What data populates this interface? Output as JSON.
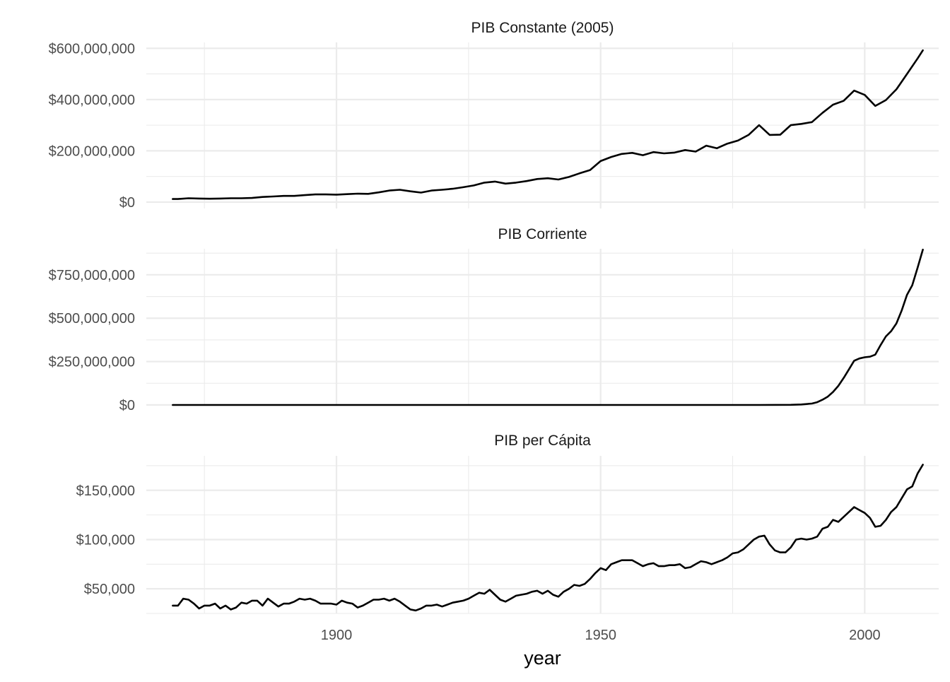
{
  "chart_data": {
    "type": "line",
    "xlabel": "year",
    "xlim": [
      1864,
      2014
    ],
    "x_ticks": [
      1900,
      1950,
      2000
    ],
    "x_tick_labels": [
      "1900",
      "1950",
      "2000"
    ],
    "panels": [
      {
        "title": "PIB Constante (2005)",
        "ylim": [
          -25000000,
          623000000
        ],
        "y_ticks": [
          0,
          200000000,
          400000000,
          600000000
        ],
        "y_tick_labels": [
          "$0",
          "$200,000,000",
          "$400,000,000",
          "$600,000,000"
        ],
        "series": [
          {
            "x": [
              1869,
              1870,
              1872,
              1874,
              1876,
              1878,
              1880,
              1882,
              1884,
              1886,
              1888,
              1890,
              1892,
              1894,
              1896,
              1898,
              1900,
              1902,
              1904,
              1906,
              1908,
              1910,
              1912,
              1914,
              1916,
              1918,
              1920,
              1922,
              1924,
              1926,
              1928,
              1930,
              1932,
              1934,
              1936,
              1938,
              1940,
              1942,
              1944,
              1946,
              1948,
              1950,
              1952,
              1954,
              1956,
              1958,
              1960,
              1962,
              1964,
              1966,
              1968,
              1970,
              1972,
              1974,
              1976,
              1978,
              1980,
              1982,
              1984,
              1986,
              1988,
              1990,
              1992,
              1994,
              1996,
              1998,
              2000,
              2002,
              2004,
              2006,
              2008,
              2010,
              2011
            ],
            "y": [
              12000000,
              12000000,
              15000000,
              14000000,
              13000000,
              14000000,
              15000000,
              15000000,
              16000000,
              20000000,
              22000000,
              24000000,
              24000000,
              27000000,
              30000000,
              30000000,
              29000000,
              31000000,
              33000000,
              32000000,
              38000000,
              45000000,
              48000000,
              42000000,
              37000000,
              45000000,
              48000000,
              52000000,
              58000000,
              65000000,
              76000000,
              80000000,
              72000000,
              76000000,
              82000000,
              90000000,
              93000000,
              88000000,
              98000000,
              112000000,
              125000000,
              160000000,
              176000000,
              188000000,
              192000000,
              183000000,
              195000000,
              190000000,
              193000000,
              203000000,
              197000000,
              220000000,
              210000000,
              228000000,
              240000000,
              262000000,
              300000000,
              262000000,
              263000000,
              300000000,
              305000000,
              312000000,
              348000000,
              380000000,
              395000000,
              435000000,
              418000000,
              375000000,
              398000000,
              440000000,
              500000000,
              560000000,
              592000000
            ]
          }
        ]
      },
      {
        "title": "PIB Corriente",
        "ylim": [
          0,
          900000000
        ],
        "y_ticks": [
          0,
          250000000,
          500000000,
          750000000
        ],
        "y_tick_labels": [
          "$0",
          "$250,000,000",
          "$500,000,000",
          "$750,000,000"
        ],
        "series": [
          {
            "x": [
              1869,
              1900,
              1950,
              1980,
              1986,
              1988,
              1990,
              1991,
              1992,
              1993,
              1994,
              1995,
              1996,
              1997,
              1998,
              1999,
              2000,
              2001,
              2002,
              2003,
              2004,
              2005,
              2006,
              2007,
              2008,
              2009,
              2010,
              2011
            ],
            "y": [
              0,
              0,
              0,
              0,
              1000000,
              3000000,
              8000000,
              16000000,
              30000000,
              48000000,
              75000000,
              110000000,
              155000000,
              205000000,
              255000000,
              268000000,
              275000000,
              278000000,
              290000000,
              345000000,
              395000000,
              425000000,
              470000000,
              545000000,
              635000000,
              690000000,
              790000000,
              895000000
            ]
          }
        ]
      },
      {
        "title": "PIB per Cápita",
        "ylim": [
          25000,
          185000
        ],
        "y_ticks": [
          50000,
          100000,
          150000
        ],
        "y_tick_labels": [
          "$50,000",
          "$100,000",
          "$150,000"
        ],
        "series": [
          {
            "x": [
              1869,
              1870,
              1871,
              1872,
              1873,
              1874,
              1875,
              1876,
              1877,
              1878,
              1879,
              1880,
              1881,
              1882,
              1883,
              1884,
              1885,
              1886,
              1887,
              1888,
              1889,
              1890,
              1891,
              1892,
              1893,
              1894,
              1895,
              1896,
              1897,
              1898,
              1899,
              1900,
              1901,
              1902,
              1903,
              1904,
              1905,
              1906,
              1907,
              1908,
              1909,
              1910,
              1911,
              1912,
              1913,
              1914,
              1915,
              1916,
              1917,
              1918,
              1919,
              1920,
              1921,
              1922,
              1923,
              1924,
              1925,
              1926,
              1927,
              1928,
              1929,
              1930,
              1931,
              1932,
              1933,
              1934,
              1935,
              1936,
              1937,
              1938,
              1939,
              1940,
              1941,
              1942,
              1943,
              1944,
              1945,
              1946,
              1947,
              1948,
              1949,
              1950,
              1951,
              1952,
              1953,
              1954,
              1955,
              1956,
              1957,
              1958,
              1959,
              1960,
              1961,
              1962,
              1963,
              1964,
              1965,
              1966,
              1967,
              1968,
              1969,
              1970,
              1971,
              1972,
              1973,
              1974,
              1975,
              1976,
              1977,
              1978,
              1979,
              1980,
              1981,
              1982,
              1983,
              1984,
              1985,
              1986,
              1987,
              1988,
              1989,
              1990,
              1991,
              1992,
              1993,
              1994,
              1995,
              1996,
              1997,
              1998,
              1999,
              2000,
              2001,
              2002,
              2003,
              2004,
              2005,
              2006,
              2007,
              2008,
              2009,
              2010,
              2011
            ],
            "y": [
              33000,
              33000,
              40000,
              39000,
              35000,
              30000,
              33000,
              33000,
              35000,
              30000,
              33000,
              29000,
              31000,
              36000,
              35000,
              38000,
              38000,
              33000,
              40000,
              36000,
              32000,
              35000,
              35000,
              37000,
              40000,
              39000,
              40000,
              38000,
              35000,
              35000,
              35000,
              34000,
              38000,
              36000,
              35000,
              31000,
              33000,
              36000,
              39000,
              39000,
              40000,
              38000,
              40000,
              37000,
              33000,
              29000,
              28000,
              30000,
              33000,
              33000,
              34000,
              32000,
              34000,
              36000,
              37000,
              38000,
              40000,
              43000,
              46000,
              45000,
              49000,
              44000,
              39000,
              37000,
              40000,
              43000,
              44000,
              45000,
              47000,
              48000,
              45000,
              48000,
              44000,
              42000,
              47000,
              50000,
              54000,
              53000,
              55000,
              60000,
              66000,
              71000,
              69000,
              75000,
              77000,
              79000,
              79000,
              79000,
              76000,
              73000,
              75000,
              76000,
              73000,
              73000,
              74000,
              74000,
              75000,
              71000,
              72000,
              75000,
              78000,
              77000,
              75000,
              77000,
              79000,
              82000,
              86000,
              87000,
              90000,
              95000,
              100000,
              103000,
              104000,
              95000,
              89000,
              87000,
              87000,
              92000,
              100000,
              101000,
              100000,
              101000,
              103000,
              111000,
              113000,
              120000,
              118000,
              123000,
              128000,
              133000,
              130000,
              127000,
              122000,
              113000,
              114000,
              120000,
              128000,
              133000,
              142000,
              151000,
              154000,
              167000,
              176000
            ]
          }
        ]
      }
    ]
  }
}
